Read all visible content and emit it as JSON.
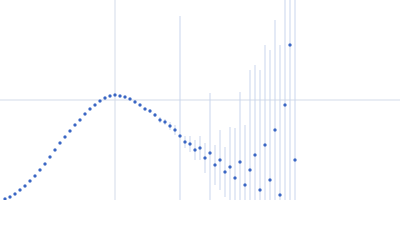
{
  "chart_data": {
    "type": "scatter",
    "xlim": [
      0,
      0.4
    ],
    "ylim": [
      0,
      2
    ],
    "grid_x": [
      0.115
    ],
    "grid_y": [
      1.0
    ],
    "point_color": "#3a66c4",
    "error_color": "#c8d5ec",
    "grid_color": "#d3dbe8",
    "x": [
      0.005,
      0.01,
      0.015,
      0.02,
      0.025,
      0.03,
      0.035,
      0.04,
      0.045,
      0.05,
      0.055,
      0.06,
      0.065,
      0.07,
      0.075,
      0.08,
      0.085,
      0.09,
      0.095,
      0.1,
      0.105,
      0.11,
      0.115,
      0.12,
      0.125,
      0.13,
      0.135,
      0.14,
      0.145,
      0.15,
      0.155,
      0.16,
      0.165,
      0.17,
      0.175,
      0.18,
      0.185,
      0.19,
      0.195,
      0.2,
      0.205,
      0.21,
      0.215,
      0.22,
      0.225,
      0.23,
      0.235,
      0.24,
      0.245,
      0.25,
      0.255,
      0.26,
      0.265,
      0.27,
      0.275,
      0.28,
      0.285,
      0.29,
      0.295
    ],
    "values": [
      0.01,
      0.03,
      0.06,
      0.1,
      0.14,
      0.19,
      0.24,
      0.3,
      0.36,
      0.43,
      0.5,
      0.57,
      0.63,
      0.69,
      0.75,
      0.8,
      0.86,
      0.91,
      0.95,
      0.99,
      1.02,
      1.04,
      1.05,
      1.04,
      1.03,
      1.01,
      0.98,
      0.95,
      0.91,
      0.89,
      0.85,
      0.8,
      0.78,
      0.74,
      0.7,
      0.64,
      0.58,
      0.56,
      0.5,
      0.52,
      0.42,
      0.47,
      0.35,
      0.4,
      0.28,
      0.33,
      0.22,
      0.38,
      0.15,
      0.3,
      0.45,
      0.1,
      0.55,
      0.2,
      0.7,
      0.05,
      0.95,
      1.55,
      0.4
    ],
    "errors": [
      0.005,
      0.005,
      0.005,
      0.005,
      0.005,
      0.005,
      0.005,
      0.005,
      0.005,
      0.005,
      0.005,
      0.005,
      0.005,
      0.005,
      0.005,
      0.005,
      0.005,
      0.01,
      0.01,
      0.01,
      0.01,
      0.01,
      0.01,
      0.01,
      0.01,
      0.01,
      0.01,
      0.015,
      0.015,
      0.02,
      0.02,
      0.03,
      0.03,
      0.04,
      0.05,
      1.2,
      0.06,
      0.08,
      0.1,
      0.12,
      0.15,
      0.6,
      0.2,
      0.3,
      0.25,
      0.4,
      0.5,
      0.7,
      0.6,
      1.0,
      0.9,
      1.2,
      1.0,
      1.3,
      1.1,
      1.5,
      1.4,
      1.6,
      1.6
    ]
  }
}
